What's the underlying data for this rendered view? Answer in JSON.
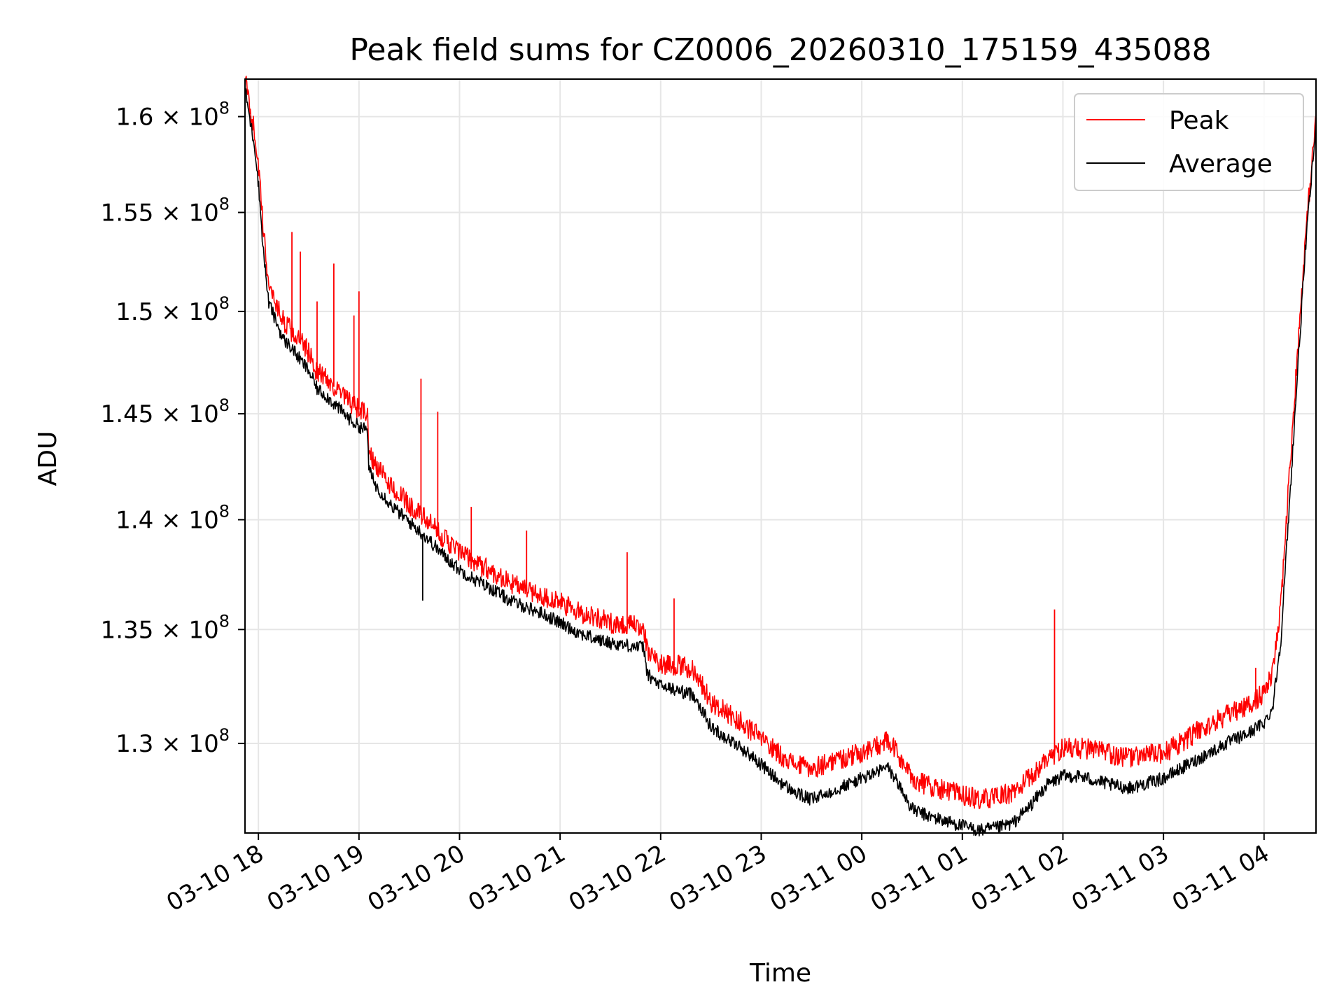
{
  "chart_data": {
    "type": "line",
    "title": "Peak field sums for CZ0006_20260310_175159_435088",
    "xlabel": "Time",
    "ylabel": "ADU",
    "x_axis_type": "time",
    "xlim": [
      "2026-03-10 17:52",
      "2026-03-11 04:31"
    ],
    "ylim": [
      126200000,
      162000000
    ],
    "y_scale": "log",
    "grid": true,
    "legend_position": "top-right",
    "x_ticks": [
      {
        "value": "2026-03-10 18:00",
        "label": "03-10 18"
      },
      {
        "value": "2026-03-10 19:00",
        "label": "03-10 19"
      },
      {
        "value": "2026-03-10 20:00",
        "label": "03-10 20"
      },
      {
        "value": "2026-03-10 21:00",
        "label": "03-10 21"
      },
      {
        "value": "2026-03-10 22:00",
        "label": "03-10 22"
      },
      {
        "value": "2026-03-10 23:00",
        "label": "03-10 23"
      },
      {
        "value": "2026-03-11 00:00",
        "label": "03-11 00"
      },
      {
        "value": "2026-03-11 01:00",
        "label": "03-11 01"
      },
      {
        "value": "2026-03-11 02:00",
        "label": "03-11 02"
      },
      {
        "value": "2026-03-11 03:00",
        "label": "03-11 03"
      },
      {
        "value": "2026-03-11 04:00",
        "label": "03-11 04"
      }
    ],
    "y_ticks": [
      {
        "value": 130000000,
        "mantissa": "1.3",
        "base": "10",
        "exponent": "8"
      },
      {
        "value": 135000000,
        "mantissa": "1.35",
        "base": "10",
        "exponent": "8"
      },
      {
        "value": 140000000,
        "mantissa": "1.4",
        "base": "10",
        "exponent": "8"
      },
      {
        "value": 145000000,
        "mantissa": "1.45",
        "base": "10",
        "exponent": "8"
      },
      {
        "value": 150000000,
        "mantissa": "1.5",
        "base": "10",
        "exponent": "8"
      },
      {
        "value": 155000000,
        "mantissa": "1.55",
        "base": "10",
        "exponent": "8"
      },
      {
        "value": 160000000,
        "mantissa": "1.6",
        "base": "10",
        "exponent": "8"
      }
    ],
    "series": [
      {
        "name": "Peak",
        "color": "#ff0000",
        "x": [
          "2026-03-10 17:52",
          "2026-03-10 17:55",
          "2026-03-10 17:58",
          "2026-03-10 18:00",
          "2026-03-10 18:03",
          "2026-03-10 18:06",
          "2026-03-10 18:10",
          "2026-03-10 18:15",
          "2026-03-10 18:20",
          "2026-03-10 18:25",
          "2026-03-10 18:30",
          "2026-03-10 18:35",
          "2026-03-10 18:40",
          "2026-03-10 18:45",
          "2026-03-10 18:50",
          "2026-03-10 18:55",
          "2026-03-10 19:00",
          "2026-03-10 19:05",
          "2026-03-10 19:06",
          "2026-03-10 19:10",
          "2026-03-10 19:20",
          "2026-03-10 19:30",
          "2026-03-10 19:40",
          "2026-03-10 19:50",
          "2026-03-10 20:00",
          "2026-03-10 20:10",
          "2026-03-10 20:20",
          "2026-03-10 20:30",
          "2026-03-10 20:40",
          "2026-03-10 20:50",
          "2026-03-10 21:00",
          "2026-03-10 21:10",
          "2026-03-10 21:20",
          "2026-03-10 21:30",
          "2026-03-10 21:40",
          "2026-03-10 21:50",
          "2026-03-10 21:52",
          "2026-03-10 22:00",
          "2026-03-10 22:10",
          "2026-03-10 22:20",
          "2026-03-10 22:30",
          "2026-03-10 22:40",
          "2026-03-10 22:50",
          "2026-03-10 23:00",
          "2026-03-10 23:10",
          "2026-03-10 23:20",
          "2026-03-10 23:30",
          "2026-03-10 23:40",
          "2026-03-10 23:50",
          "2026-03-11 00:00",
          "2026-03-11 00:10",
          "2026-03-11 00:15",
          "2026-03-11 00:20",
          "2026-03-11 00:30",
          "2026-03-11 00:40",
          "2026-03-11 00:50",
          "2026-03-11 01:00",
          "2026-03-11 01:10",
          "2026-03-11 01:20",
          "2026-03-11 01:30",
          "2026-03-11 01:40",
          "2026-03-11 01:50",
          "2026-03-11 02:00",
          "2026-03-11 02:10",
          "2026-03-11 02:20",
          "2026-03-11 02:30",
          "2026-03-11 02:40",
          "2026-03-11 02:50",
          "2026-03-11 03:00",
          "2026-03-11 03:10",
          "2026-03-11 03:20",
          "2026-03-11 03:30",
          "2026-03-11 03:40",
          "2026-03-11 03:50",
          "2026-03-11 04:00",
          "2026-03-11 04:05",
          "2026-03-11 04:10",
          "2026-03-11 04:15",
          "2026-03-11 04:20",
          "2026-03-11 04:25",
          "2026-03-11 04:31"
        ],
        "values": [
          162000000,
          160500000,
          159000000,
          157500000,
          154000000,
          151500000,
          150500000,
          149500000,
          149000000,
          148500000,
          148000000,
          147000000,
          146800000,
          146300000,
          145900000,
          145500000,
          145200000,
          145000000,
          143200000,
          142500000,
          141500000,
          140700000,
          140000000,
          139200000,
          138500000,
          138000000,
          137600000,
          137100000,
          136800000,
          136500000,
          136200000,
          135800000,
          135600000,
          135300000,
          135200000,
          135100000,
          134000000,
          133500000,
          133400000,
          133200000,
          131800000,
          131300000,
          130800000,
          130200000,
          129600000,
          129100000,
          128900000,
          129200000,
          129400000,
          129600000,
          129900000,
          130100000,
          129700000,
          128500000,
          128200000,
          128000000,
          127800000,
          127600000,
          127700000,
          127900000,
          128500000,
          129300000,
          129800000,
          129800000,
          129700000,
          129500000,
          129400000,
          129500000,
          129600000,
          130000000,
          130500000,
          130900000,
          131300000,
          131600000,
          132200000,
          133000000,
          136000000,
          142000000,
          148000000,
          154000000,
          160000000
        ]
      },
      {
        "name": "Average",
        "color": "#000000",
        "x": [
          "2026-03-10 17:52",
          "2026-03-10 17:55",
          "2026-03-10 17:58",
          "2026-03-10 18:00",
          "2026-03-10 18:03",
          "2026-03-10 18:06",
          "2026-03-10 18:10",
          "2026-03-10 18:15",
          "2026-03-10 18:20",
          "2026-03-10 18:25",
          "2026-03-10 18:30",
          "2026-03-10 18:35",
          "2026-03-10 18:40",
          "2026-03-10 18:45",
          "2026-03-10 18:50",
          "2026-03-10 18:55",
          "2026-03-10 19:00",
          "2026-03-10 19:05",
          "2026-03-10 19:06",
          "2026-03-10 19:10",
          "2026-03-10 19:20",
          "2026-03-10 19:30",
          "2026-03-10 19:40",
          "2026-03-10 19:50",
          "2026-03-10 20:00",
          "2026-03-10 20:10",
          "2026-03-10 20:20",
          "2026-03-10 20:30",
          "2026-03-10 20:40",
          "2026-03-10 20:50",
          "2026-03-10 21:00",
          "2026-03-10 21:10",
          "2026-03-10 21:20",
          "2026-03-10 21:30",
          "2026-03-10 21:40",
          "2026-03-10 21:50",
          "2026-03-10 21:52",
          "2026-03-10 22:00",
          "2026-03-10 22:10",
          "2026-03-10 22:20",
          "2026-03-10 22:30",
          "2026-03-10 22:40",
          "2026-03-10 22:50",
          "2026-03-10 23:00",
          "2026-03-10 23:10",
          "2026-03-10 23:20",
          "2026-03-10 23:30",
          "2026-03-10 23:40",
          "2026-03-10 23:50",
          "2026-03-11 00:00",
          "2026-03-11 00:10",
          "2026-03-11 00:15",
          "2026-03-11 00:20",
          "2026-03-11 00:30",
          "2026-03-11 00:40",
          "2026-03-11 00:50",
          "2026-03-11 01:00",
          "2026-03-11 01:10",
          "2026-03-11 01:20",
          "2026-03-11 01:30",
          "2026-03-11 01:40",
          "2026-03-11 01:50",
          "2026-03-11 02:00",
          "2026-03-11 02:10",
          "2026-03-11 02:20",
          "2026-03-11 02:30",
          "2026-03-11 02:40",
          "2026-03-11 02:50",
          "2026-03-11 03:00",
          "2026-03-11 03:10",
          "2026-03-11 03:20",
          "2026-03-11 03:30",
          "2026-03-11 03:40",
          "2026-03-11 03:50",
          "2026-03-11 04:00",
          "2026-03-11 04:05",
          "2026-03-11 04:10",
          "2026-03-11 04:15",
          "2026-03-11 04:20",
          "2026-03-11 04:25",
          "2026-03-11 04:31"
        ],
        "values": [
          161500000,
          159800000,
          158300000,
          156500000,
          153000000,
          150500000,
          149600000,
          148600000,
          148200000,
          147600000,
          147100000,
          146200000,
          145900000,
          145500000,
          145100000,
          144700000,
          144400000,
          144200000,
          142300000,
          141600000,
          140600000,
          139900000,
          139200000,
          138400000,
          137700000,
          137200000,
          136800000,
          136300000,
          136000000,
          135700000,
          135300000,
          134900000,
          134600000,
          134400000,
          134300000,
          134200000,
          133000000,
          132500000,
          132300000,
          132100000,
          130700000,
          130200000,
          129700000,
          129100000,
          128400000,
          127900000,
          127600000,
          127900000,
          128200000,
          128500000,
          128800000,
          129000000,
          128500000,
          127200000,
          126900000,
          126700000,
          126500000,
          126300000,
          126400000,
          126600000,
          127300000,
          128200000,
          128600000,
          128600000,
          128400000,
          128200000,
          128100000,
          128300000,
          128500000,
          128900000,
          129300000,
          129700000,
          130100000,
          130400000,
          130900000,
          131500000,
          134500000,
          140500000,
          147000000,
          153500000,
          159500000
        ]
      }
    ],
    "peak_spikes": [
      {
        "x": "2026-03-10 18:20",
        "value": 154000000
      },
      {
        "x": "2026-03-10 18:25",
        "value": 153000000
      },
      {
        "x": "2026-03-10 18:35",
        "value": 150500000
      },
      {
        "x": "2026-03-10 18:45",
        "value": 152400000
      },
      {
        "x": "2026-03-10 18:57",
        "value": 149800000
      },
      {
        "x": "2026-03-10 19:00",
        "value": 151000000
      },
      {
        "x": "2026-03-10 19:37",
        "value": 146700000
      },
      {
        "x": "2026-03-10 19:47",
        "value": 145100000
      },
      {
        "x": "2026-03-10 20:07",
        "value": 140600000
      },
      {
        "x": "2026-03-10 20:40",
        "value": 139500000
      },
      {
        "x": "2026-03-10 21:40",
        "value": 138500000
      },
      {
        "x": "2026-03-10 22:08",
        "value": 136400000
      },
      {
        "x": "2026-03-11 01:55",
        "value": 135900000
      },
      {
        "x": "2026-03-11 03:55",
        "value": 133300000
      }
    ],
    "average_dips": [
      {
        "x": "2026-03-10 19:38",
        "value": 136300000
      }
    ]
  }
}
